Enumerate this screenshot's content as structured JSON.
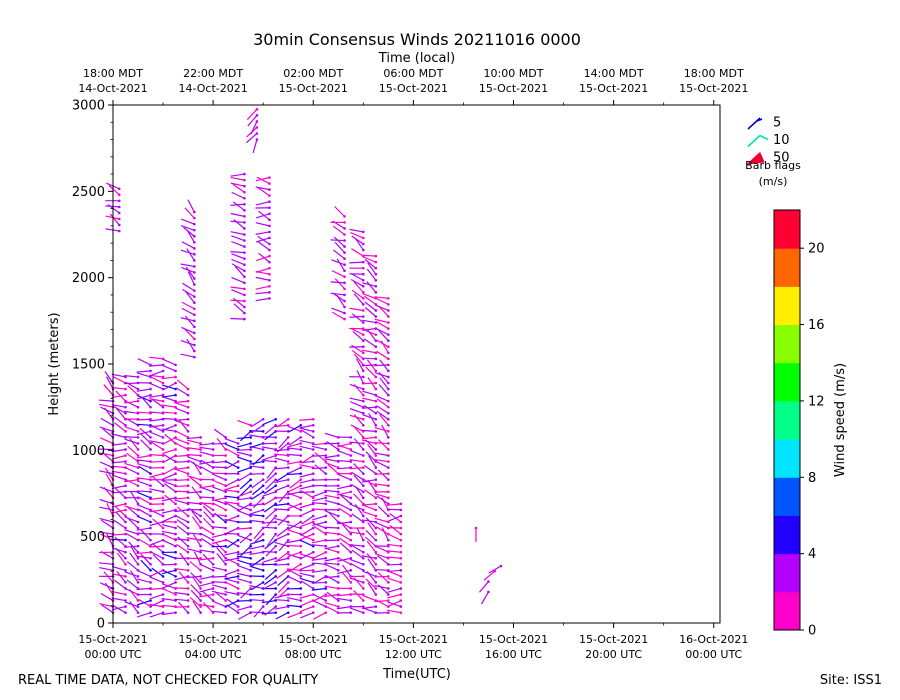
{
  "chart_data": {
    "type": "wind-barb",
    "title": "30min Consensus Winds 20211016 0000",
    "top_axis_label": "Time (local)",
    "xlabel": "Time(UTC)",
    "ylabel": "Height (meters)",
    "ylim": [
      0,
      3000
    ],
    "xlim_hours": [
      0,
      48.5
    ],
    "y_ticks": [
      {
        "value": 0,
        "label": "0"
      },
      {
        "value": 500,
        "label": "500"
      },
      {
        "value": 1000,
        "label": "1000"
      },
      {
        "value": 1500,
        "label": "1500"
      },
      {
        "value": 2000,
        "label": "2000"
      },
      {
        "value": 2500,
        "label": "2500"
      },
      {
        "value": 3000,
        "label": "3000"
      }
    ],
    "x_ticks_utc": [
      {
        "hour": 0,
        "date": "15-Oct-2021",
        "time": "00:00 UTC"
      },
      {
        "hour": 8,
        "date": "15-Oct-2021",
        "time": "04:00 UTC"
      },
      {
        "hour": 16,
        "date": "15-Oct-2021",
        "time": "08:00 UTC"
      },
      {
        "hour": 24,
        "date": "15-Oct-2021",
        "time": "12:00 UTC"
      },
      {
        "hour": 32,
        "date": "15-Oct-2021",
        "time": "16:00 UTC"
      },
      {
        "hour": 40,
        "date": "15-Oct-2021",
        "time": "20:00 UTC"
      },
      {
        "hour": 48,
        "date": "16-Oct-2021",
        "time": "00:00 UTC"
      }
    ],
    "x_ticks_local": [
      {
        "hour": 0,
        "time": "18:00 MDT",
        "date": "14-Oct-2021"
      },
      {
        "hour": 8,
        "time": "22:00 MDT",
        "date": "14-Oct-2021"
      },
      {
        "hour": 16,
        "time": "02:00 MDT",
        "date": "15-Oct-2021"
      },
      {
        "hour": 24,
        "time": "06:00 MDT",
        "date": "15-Oct-2021"
      },
      {
        "hour": 32,
        "time": "10:00 MDT",
        "date": "15-Oct-2021"
      },
      {
        "hour": 40,
        "time": "14:00 MDT",
        "date": "15-Oct-2021"
      },
      {
        "hour": 48,
        "time": "18:00 MDT",
        "date": "15-Oct-2021"
      }
    ],
    "barb_legend": {
      "entries": [
        {
          "value": "5",
          "color": "#0000cc"
        },
        {
          "value": "10",
          "color": "#00e5a0"
        },
        {
          "value": "50",
          "color": "#ee0033"
        }
      ],
      "title": "Barb flags",
      "units": "(m/s)"
    },
    "colorbar": {
      "label": "Wind speed (m/s)",
      "min": 0,
      "max": 22,
      "ticks": [
        "0",
        "4",
        "8",
        "12",
        "16",
        "20"
      ],
      "tick_values": [
        0,
        4,
        8,
        12,
        16,
        20
      ],
      "colors": [
        "#ff00cc",
        "#b300ff",
        "#2200ff",
        "#0055ff",
        "#00e5ff",
        "#00ff88",
        "#00ff00",
        "#88ff00",
        "#ffee00",
        "#ff6600",
        "#ff0033"
      ]
    },
    "series": [
      {
        "name": "col_00",
        "hour": 0.0,
        "heights": [
          60,
          1420
        ],
        "speed": 2.5,
        "dir": 300
      },
      {
        "name": "col_01",
        "hour": 1.0,
        "heights": [
          60,
          1430
        ],
        "speed": 2.8,
        "dir": 290
      },
      {
        "name": "col_02",
        "hour": 2.0,
        "heights": [
          60,
          1450
        ],
        "speed": 2.4,
        "dir": 295
      },
      {
        "name": "col_03",
        "hour": 3.0,
        "heights": [
          60,
          1500
        ],
        "speed": 3.0,
        "dir": 285
      },
      {
        "name": "col_04",
        "hour": 4.0,
        "heights": [
          60,
          1560
        ],
        "speed": 2.6,
        "dir": 280
      },
      {
        "name": "col_05",
        "hour": 5.0,
        "heights": [
          60,
          1500
        ],
        "speed": 2.9,
        "dir": 275
      },
      {
        "name": "col_06",
        "hour": 6.0,
        "heights": [
          60,
          1380
        ],
        "speed": 2.3,
        "dir": 290
      },
      {
        "name": "col_07",
        "hour": 7.0,
        "heights": [
          60,
          1100
        ],
        "speed": 2.2,
        "dir": 300
      },
      {
        "name": "col_08",
        "hour": 8.0,
        "heights": [
          60,
          1050
        ],
        "speed": 2.4,
        "dir": 285
      },
      {
        "name": "col_09",
        "hour": 9.0,
        "heights": [
          60,
          1100
        ],
        "speed": 2.6,
        "dir": 290
      },
      {
        "name": "col_10",
        "hour": 10.0,
        "heights": [
          60,
          1050
        ],
        "speed": 3.1,
        "dir": 270
      },
      {
        "name": "col_11",
        "hour": 11.0,
        "heights": [
          60,
          1150
        ],
        "speed": 3.4,
        "dir": 260
      },
      {
        "name": "col_12",
        "hour": 12.0,
        "heights": [
          60,
          1200
        ],
        "speed": 3.6,
        "dir": 255
      },
      {
        "name": "col_13",
        "hour": 13.0,
        "heights": [
          60,
          1200
        ],
        "speed": 3.3,
        "dir": 250
      },
      {
        "name": "col_14",
        "hour": 14.0,
        "heights": [
          60,
          1180
        ],
        "speed": 3.0,
        "dir": 255
      },
      {
        "name": "col_15",
        "hour": 15.0,
        "heights": [
          60,
          1150
        ],
        "speed": 2.7,
        "dir": 265
      },
      {
        "name": "col_16",
        "hour": 16.0,
        "heights": [
          60,
          1180
        ],
        "speed": 2.5,
        "dir": 270
      },
      {
        "name": "col_17",
        "hour": 17.0,
        "heights": [
          60,
          1060
        ],
        "speed": 2.6,
        "dir": 275
      },
      {
        "name": "col_18",
        "hour": 18.0,
        "heights": [
          60,
          1100
        ],
        "speed": 2.4,
        "dir": 285
      },
      {
        "name": "col_19",
        "hour": 19.0,
        "heights": [
          60,
          1090
        ],
        "speed": 2.3,
        "dir": 290
      },
      {
        "name": "col_20",
        "hour": 20.0,
        "heights": [
          60,
          2280
        ],
        "speed": 2.2,
        "dir": 300
      },
      {
        "name": "col_21",
        "hour": 21.0,
        "heights": [
          60,
          2150
        ],
        "speed": 2.4,
        "dir": 295
      },
      {
        "name": "col_22",
        "hour": 22.0,
        "heights": [
          60,
          1900
        ],
        "speed": 2.1,
        "dir": 300
      },
      {
        "name": "col_23",
        "hour": 23.0,
        "heights": [
          60,
          700
        ],
        "speed": 1.8,
        "dir": 280
      }
    ],
    "upper_clusters": [
      {
        "name": "upper_a",
        "hour": 0.5,
        "heights": [
          2270,
          2540
        ],
        "speed": 2.5,
        "dir": 300
      },
      {
        "name": "upper_b",
        "hour": 6.5,
        "heights": [
          1540,
          2390
        ],
        "speed": 2.8,
        "dir": 310
      },
      {
        "name": "upper_c",
        "hour": 10.5,
        "heights": [
          1760,
          2600
        ],
        "speed": 2.4,
        "dir": 290
      },
      {
        "name": "upper_d",
        "hour": 11.5,
        "heights": [
          2800,
          2990
        ],
        "speed": 2.0,
        "dir": 200
      },
      {
        "name": "upper_e",
        "hour": 12.5,
        "heights": [
          1880,
          2600
        ],
        "speed": 2.6,
        "dir": 280
      },
      {
        "name": "upper_f",
        "hour": 18.5,
        "heights": [
          1760,
          2360
        ],
        "speed": 2.4,
        "dir": 300
      }
    ],
    "scattered_points": [
      {
        "hour": 29.0,
        "height": 550,
        "speed": 1.8,
        "dir": 180
      },
      {
        "hour": 30.0,
        "height": 180,
        "speed": 2.0,
        "dir": 210
      },
      {
        "hour": 30.0,
        "height": 240,
        "speed": 2.2,
        "dir": 220
      },
      {
        "hour": 30.5,
        "height": 300,
        "speed": 1.9,
        "dir": 230
      },
      {
        "hour": 31.0,
        "height": 330,
        "speed": 2.0,
        "dir": 240
      }
    ]
  },
  "footer": {
    "left": "REAL TIME DATA, NOT CHECKED FOR QUALITY",
    "right": "Site: ISS1"
  }
}
